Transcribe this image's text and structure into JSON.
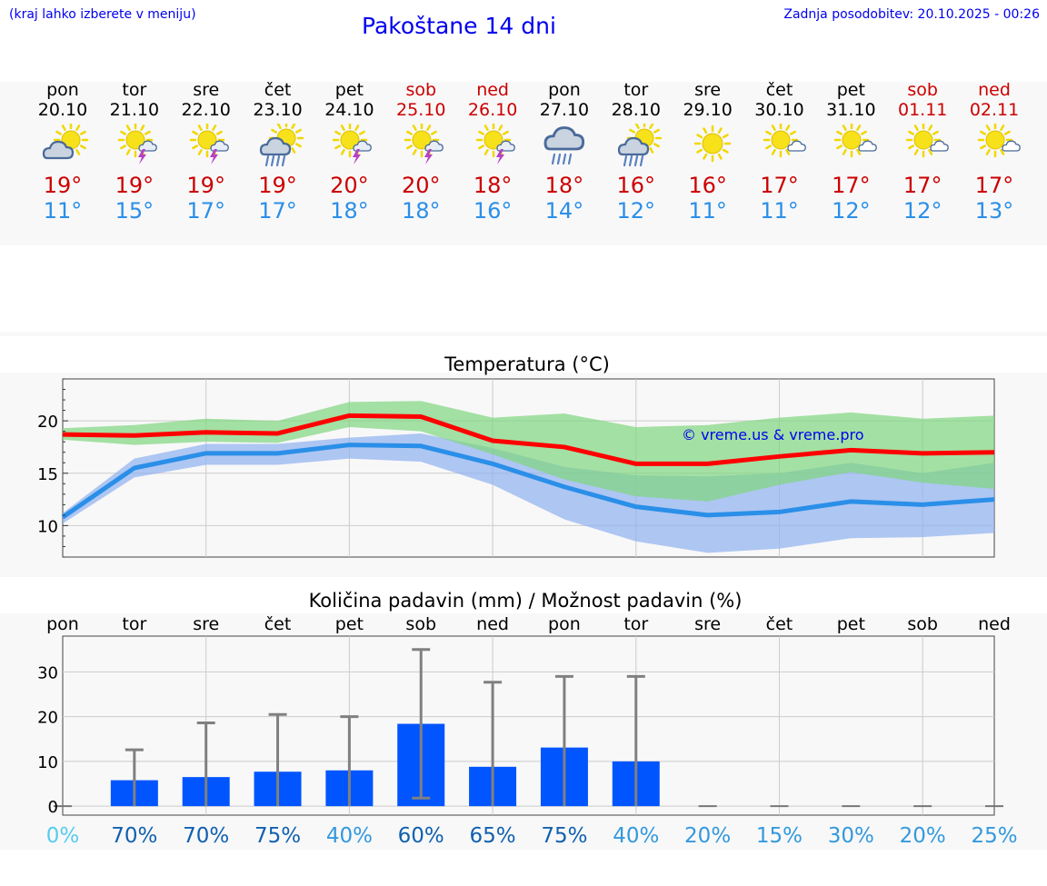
{
  "header": {
    "hint": "(kraj lahko izberete v meniju)",
    "title": "Pakoštane 14 dni",
    "updated": "Zadnja posodobitev: 20.10.2025 - 00:26"
  },
  "colors": {
    "hi": "#cc0000",
    "lo": "#2a8fe8",
    "link": "#0000ee",
    "bar": "#0055ff"
  },
  "forecast": [
    {
      "day": "pon",
      "date": "20.10",
      "weekend": false,
      "icon": "sun-cloud-icon",
      "hi": "19°",
      "lo": "11°"
    },
    {
      "day": "tor",
      "date": "21.10",
      "weekend": false,
      "icon": "sun-thunder-icon",
      "hi": "19°",
      "lo": "15°"
    },
    {
      "day": "sre",
      "date": "22.10",
      "weekend": false,
      "icon": "sun-thunder-icon",
      "hi": "19°",
      "lo": "17°"
    },
    {
      "day": "čet",
      "date": "23.10",
      "weekend": false,
      "icon": "sun-cloud-rain-icon",
      "hi": "19°",
      "lo": "17°"
    },
    {
      "day": "pet",
      "date": "24.10",
      "weekend": false,
      "icon": "sun-thunder-icon",
      "hi": "20°",
      "lo": "18°"
    },
    {
      "day": "sob",
      "date": "25.10",
      "weekend": true,
      "icon": "sun-thunder-icon",
      "hi": "20°",
      "lo": "18°"
    },
    {
      "day": "ned",
      "date": "26.10",
      "weekend": true,
      "icon": "sun-thunder-icon",
      "hi": "18°",
      "lo": "16°"
    },
    {
      "day": "pon",
      "date": "27.10",
      "weekend": false,
      "icon": "cloud-rain-icon",
      "hi": "18°",
      "lo": "14°"
    },
    {
      "day": "tor",
      "date": "28.10",
      "weekend": false,
      "icon": "sun-cloud-rain-icon",
      "hi": "16°",
      "lo": "12°"
    },
    {
      "day": "sre",
      "date": "29.10",
      "weekend": false,
      "icon": "sun-icon",
      "hi": "16°",
      "lo": "11°"
    },
    {
      "day": "čet",
      "date": "30.10",
      "weekend": false,
      "icon": "sun-small-cloud-icon",
      "hi": "17°",
      "lo": "11°"
    },
    {
      "day": "pet",
      "date": "31.10",
      "weekend": false,
      "icon": "sun-small-cloud-icon",
      "hi": "17°",
      "lo": "12°"
    },
    {
      "day": "sob",
      "date": "01.11",
      "weekend": true,
      "icon": "sun-small-cloud-icon",
      "hi": "17°",
      "lo": "12°"
    },
    {
      "day": "ned",
      "date": "02.11",
      "weekend": true,
      "icon": "sun-small-cloud-icon",
      "hi": "17°",
      "lo": "13°"
    }
  ],
  "chart_data": [
    {
      "type": "line",
      "title": "Temperatura (°C)",
      "watermark": "© vreme.us & vreme.pro",
      "x": [
        0,
        1,
        2,
        3,
        4,
        5,
        6,
        7,
        8,
        9,
        10,
        11,
        12,
        13
      ],
      "ylim": [
        7,
        24
      ],
      "yticks": [
        10,
        15,
        20
      ],
      "series": [
        {
          "name": "max",
          "values": [
            18.7,
            18.6,
            18.9,
            18.8,
            20.5,
            20.4,
            18.1,
            17.5,
            15.9,
            15.9,
            16.6,
            17.2,
            16.9,
            17.0
          ]
        },
        {
          "name": "min",
          "values": [
            10.8,
            15.5,
            16.9,
            16.9,
            17.7,
            17.6,
            15.9,
            13.7,
            11.8,
            11.0,
            11.3,
            12.3,
            12.0,
            12.5
          ]
        },
        {
          "name": "max-range-upper",
          "values": [
            19.3,
            19.6,
            20.2,
            20.0,
            21.8,
            21.9,
            20.3,
            20.7,
            19.4,
            19.6,
            20.3,
            20.8,
            20.2,
            20.5
          ]
        },
        {
          "name": "max-range-lower",
          "values": [
            18.2,
            17.7,
            18.0,
            17.9,
            19.4,
            19.0,
            16.8,
            14.4,
            12.8,
            12.3,
            13.9,
            15.1,
            14.1,
            13.5
          ]
        },
        {
          "name": "min-range-upper",
          "values": [
            11.2,
            16.4,
            17.8,
            17.8,
            18.4,
            18.8,
            17.4,
            15.6,
            14.8,
            14.7,
            15.0,
            16.0,
            15.0,
            16.0
          ]
        },
        {
          "name": "min-range-lower",
          "values": [
            10.2,
            14.6,
            15.8,
            15.8,
            16.4,
            16.1,
            13.9,
            10.6,
            8.5,
            7.4,
            7.8,
            8.8,
            8.9,
            9.3
          ]
        }
      ]
    },
    {
      "type": "bar",
      "title": "Količina padavin (mm) / Možnost padavin (%)",
      "categories": [
        "pon",
        "tor",
        "sre",
        "čet",
        "pet",
        "sob",
        "ned",
        "pon",
        "tor",
        "sre",
        "čet",
        "pet",
        "sob",
        "ned"
      ],
      "values": [
        0,
        5.8,
        6.5,
        7.7,
        8.0,
        18.4,
        8.8,
        13.1,
        10.0,
        0,
        0,
        0,
        0,
        0
      ],
      "error_low": [
        0,
        0,
        0,
        0,
        0,
        1.8,
        0,
        0,
        0,
        0,
        0,
        0,
        0,
        0
      ],
      "error_high": [
        0,
        12.6,
        18.6,
        20.5,
        20.0,
        35.0,
        27.7,
        29.0,
        29.0,
        0,
        0,
        0,
        0,
        0
      ],
      "ylim": [
        -2,
        38
      ],
      "yticks": [
        0,
        10,
        20,
        30
      ],
      "chance": [
        "0%",
        "70%",
        "70%",
        "75%",
        "40%",
        "60%",
        "65%",
        "75%",
        "40%",
        "20%",
        "15%",
        "30%",
        "20%",
        "25%"
      ],
      "chance_colors": [
        "#55ccee",
        "#1060b0",
        "#1060b0",
        "#1060b0",
        "#3399dd",
        "#1060b0",
        "#1060b0",
        "#1060b0",
        "#3399dd",
        "#3399dd",
        "#3399dd",
        "#3399dd",
        "#3399dd",
        "#3399dd"
      ]
    }
  ]
}
